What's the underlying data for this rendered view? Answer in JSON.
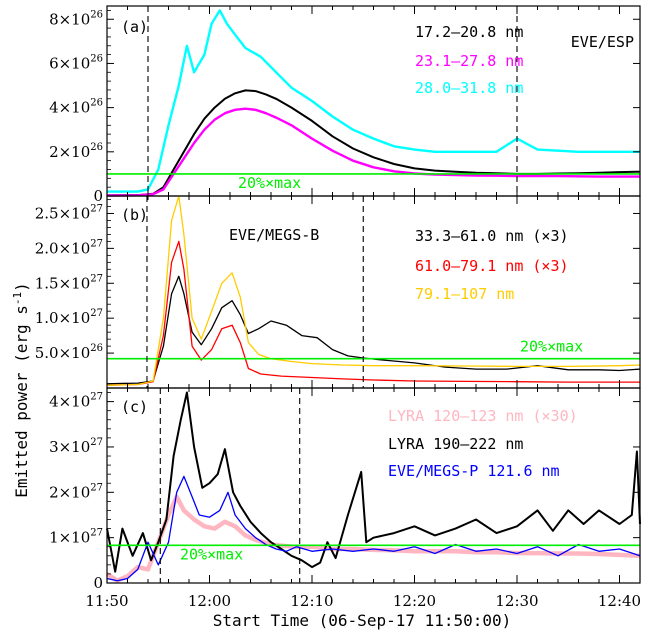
{
  "figure": {
    "xlabel": "Start Time (06-Sep-17 11:50:00)",
    "ylabel_main": "Emitted power (erg s",
    "ylabel_sup": "-1",
    "ylabel_close": ")",
    "x_tick_labels": [
      "11:50",
      "12:00",
      "12:10",
      "12:20",
      "12:30",
      "12:40"
    ],
    "threshold_label": "20%×max"
  },
  "colors": {
    "black": "#000000",
    "magenta": "#ff00ff",
    "cyan": "#00ffff",
    "red": "#ff0000",
    "gold": "#ffcc00",
    "pink": "#ffb6c1",
    "blue": "#0000ff",
    "green": "#00ee00"
  },
  "chart_data": [
    {
      "type": "line",
      "panel_label": "(a)",
      "instrument_label": "EVE/ESP",
      "x_unit": "minutes after 11:50",
      "xlim": [
        0,
        52
      ],
      "ylim": [
        0,
        8.6e+26
      ],
      "y_tick_labels": [
        {
          "mant": "0",
          "exp": ""
        },
        {
          "mant": "2×10",
          "exp": "26"
        },
        {
          "mant": "4×10",
          "exp": "26"
        },
        {
          "mant": "6×10",
          "exp": "26"
        },
        {
          "mant": "8×10",
          "exp": "26"
        }
      ],
      "y_ticks": [
        0,
        2e+26,
        4e+26,
        6e+26,
        8e+26
      ],
      "threshold": 1e+26,
      "vlines": [
        4.0,
        40.0
      ],
      "series": [
        {
          "name": "17.2–20.8 nm",
          "color": "black",
          "x": [
            0,
            3,
            4.5,
            5.5,
            6.5,
            7.5,
            8.5,
            9.5,
            10.5,
            11.5,
            12.5,
            13.5,
            14.5,
            15.5,
            16.5,
            18,
            20,
            22,
            24,
            26,
            28,
            30,
            32,
            34,
            36,
            38,
            40,
            42,
            44,
            46,
            48,
            50,
            52
          ],
          "y": [
            3e+24,
            4e+24,
            1e+25,
            4e+25,
            1.2e+26,
            2e+26,
            2.8e+26,
            3.5e+26,
            4e+26,
            4.4e+26,
            4.65e+26,
            4.78e+26,
            4.75e+26,
            4.6e+26,
            4.4e+26,
            4e+26,
            3.4e+26,
            2.7e+26,
            2.15e+26,
            1.75e+26,
            1.45e+26,
            1.25e+26,
            1.15e+26,
            1.1e+26,
            1.05e+26,
            1.03e+26,
            1e+26,
            1e+26,
            1.02e+26,
            1.03e+26,
            1.05e+26,
            1.08e+26,
            1.1e+26
          ]
        },
        {
          "name": "23.1–27.8 nm",
          "color": "magenta",
          "x": [
            0,
            3,
            4.5,
            5.5,
            6.5,
            7.5,
            8.5,
            9.5,
            10.5,
            11.5,
            12.5,
            13.5,
            14.5,
            15.5,
            16.5,
            18,
            20,
            22,
            24,
            26,
            28,
            30,
            32,
            34,
            36,
            38,
            40,
            42,
            44,
            46,
            48,
            50,
            52
          ],
          "y": [
            2e+24,
            3e+24,
            8e+24,
            3e+25,
            1e+26,
            1.7e+26,
            2.4e+26,
            3e+26,
            3.45e+26,
            3.75e+26,
            3.9e+26,
            3.95e+26,
            3.9e+26,
            3.75e+26,
            3.55e+26,
            3.2e+26,
            2.6e+26,
            2.05e+26,
            1.6e+26,
            1.3e+26,
            1.12e+26,
            1.02e+26,
            9.7e+25,
            9.5e+25,
            9.3e+25,
            9.2e+25,
            9e+25,
            9e+25,
            9e+25,
            8.9e+25,
            8.8e+25,
            8.8e+25,
            8.8e+25
          ]
        },
        {
          "name": "28.0–31.8 nm",
          "color": "cyan",
          "x": [
            0,
            3,
            4.0,
            5.0,
            6.0,
            7.0,
            7.8,
            8.5,
            9.5,
            10.2,
            11.0,
            11.7,
            12.5,
            13.5,
            15,
            16.5,
            18,
            20,
            22,
            24,
            26,
            28,
            30,
            32,
            34,
            36,
            38,
            40,
            42,
            44,
            46,
            48,
            50,
            52
          ],
          "y": [
            2e+25,
            2e+25,
            3e+25,
            1.2e+26,
            3.2e+26,
            5e+26,
            6.8e+26,
            5.6e+26,
            6.4e+26,
            7.8e+26,
            8.4e+26,
            7.8e+26,
            7.3e+26,
            6.7e+26,
            6.3e+26,
            5.6e+26,
            4.9e+26,
            4.3e+26,
            3.6e+26,
            3e+26,
            2.6e+26,
            2.25e+26,
            2.1e+26,
            2e+26,
            2e+26,
            2e+26,
            2e+26,
            2.6e+26,
            2.1e+26,
            2.05e+26,
            2e+26,
            2e+26,
            2e+26,
            2e+26
          ]
        }
      ]
    },
    {
      "type": "line",
      "panel_label": "(b)",
      "instrument_label": "EVE/MEGS-B",
      "x_unit": "minutes after 11:50",
      "xlim": [
        0,
        52
      ],
      "ylim": [
        0,
        2.75e+27
      ],
      "y_tick_labels": [
        {
          "mant": "5.0×10",
          "exp": "26"
        },
        {
          "mant": "1.0×10",
          "exp": "27"
        },
        {
          "mant": "1.5×10",
          "exp": "27"
        },
        {
          "mant": "2.0×10",
          "exp": "27"
        },
        {
          "mant": "2.5×10",
          "exp": "27"
        }
      ],
      "y_ticks": [
        5e+26,
        1e+27,
        1.5e+27,
        2e+27,
        2.5e+27
      ],
      "threshold": 4.2e+26,
      "vlines": [
        3.9,
        25.0
      ],
      "series": [
        {
          "name": "33.3–61.0 nm (×3)",
          "color": "black",
          "x": [
            0,
            3,
            4.5,
            5.5,
            6.3,
            7.0,
            7.5,
            8.3,
            9.2,
            10.2,
            11.2,
            12.2,
            13.0,
            13.8,
            14.8,
            16,
            17.5,
            19,
            20.5,
            22,
            23.5,
            25,
            27,
            30,
            33,
            36,
            39,
            42,
            45,
            48,
            50,
            52
          ],
          "y": [
            6e+25,
            7e+25,
            1e+26,
            6e+26,
            1.35e+27,
            1.6e+27,
            1.35e+27,
            8e+26,
            6.2e+26,
            8.5e+26,
            1.15e+27,
            1.25e+27,
            1.05e+27,
            7.8e+26,
            8.5e+26,
            9.6e+26,
            9e+26,
            7.5e+26,
            7.2e+26,
            5.5e+26,
            4.6e+26,
            4.3e+26,
            4e+26,
            3.6e+26,
            3e+26,
            2.7e+26,
            2.7e+26,
            3.2e+26,
            2.6e+26,
            2.6e+26,
            2.5e+26,
            2.7e+26
          ]
        },
        {
          "name": "61.0–79.1 nm (×3)",
          "color": "red",
          "x": [
            0,
            3,
            4.5,
            5.5,
            6.3,
            7.0,
            7.5,
            8.3,
            9.2,
            10.2,
            11.2,
            12.2,
            13.0,
            13.8,
            15,
            17,
            20,
            23,
            26,
            30,
            35,
            40,
            45,
            52
          ],
          "y": [
            4e+25,
            5e+25,
            9e+25,
            7.5e+26,
            1.8e+27,
            2.1e+27,
            1.7e+27,
            6e+26,
            4e+26,
            5.5e+26,
            8.5e+26,
            9e+26,
            6.5e+26,
            2.8e+26,
            2e+26,
            1.7e+26,
            1.5e+26,
            1.3e+26,
            1.15e+26,
            1e+26,
            9.5e+25,
            9e+25,
            8.5e+25,
            8.5e+25
          ]
        },
        {
          "name": "79.1–107 nm",
          "color": "gold",
          "x": [
            0,
            3,
            4.5,
            5.5,
            6.3,
            7.0,
            7.5,
            8.3,
            9.2,
            10.2,
            11.2,
            12.2,
            13.0,
            13.8,
            14.8,
            16,
            18,
            20,
            23,
            26,
            30,
            35,
            40,
            45,
            50,
            52
          ],
          "y": [
            4e+25,
            5e+25,
            1e+26,
            1e+27,
            2.4e+27,
            2.75e+27,
            2.2e+27,
            1e+27,
            7e+26,
            1.1e+27,
            1.5e+27,
            1.65e+27,
            1.3e+27,
            6.5e+26,
            4.8e+26,
            4.2e+26,
            3.8e+26,
            3.5e+26,
            3.3e+26,
            3.2e+26,
            3.2e+26,
            3.15e+26,
            3.1e+26,
            3.1e+26,
            3.2e+26,
            3.3e+26
          ]
        }
      ]
    },
    {
      "type": "line",
      "panel_label": "(c)",
      "x_unit": "minutes after 11:50",
      "xlim": [
        0,
        52
      ],
      "ylim": [
        0,
        4.3e+27
      ],
      "y_tick_labels": [
        {
          "mant": "0",
          "exp": ""
        },
        {
          "mant": "1×10",
          "exp": "27"
        },
        {
          "mant": "2×10",
          "exp": "27"
        },
        {
          "mant": "3×10",
          "exp": "27"
        },
        {
          "mant": "4×10",
          "exp": "27"
        }
      ],
      "y_ticks": [
        0,
        1e+27,
        2e+27,
        3e+27,
        4e+27
      ],
      "threshold": 8.3e+26,
      "vlines": [
        5.2,
        18.8
      ],
      "series": [
        {
          "name": "LYRA 120–123 nm (×30)",
          "color": "pink",
          "x": [
            0,
            1,
            2,
            3,
            4,
            5,
            6,
            6.8,
            7.5,
            8.5,
            9.5,
            10.5,
            11.5,
            12.5,
            13.5,
            14.5,
            16,
            18,
            20,
            22,
            24,
            26,
            28,
            30,
            32,
            34,
            36,
            38,
            40,
            42,
            44,
            46,
            48,
            50,
            52
          ],
          "y": [
            2e+26,
            5e+25,
            1.5e+26,
            3.5e+26,
            3e+26,
            9e+26,
            1.5e+27,
            1.9e+27,
            1.6e+27,
            1.4e+27,
            1.25e+27,
            1.2e+27,
            1.35e+27,
            1.25e+27,
            1.05e+27,
            9.5e+26,
            8.5e+26,
            8e+26,
            8e+26,
            7.5e+26,
            7.5e+26,
            7.3e+26,
            7.2e+26,
            7e+26,
            7e+26,
            7e+26,
            6.8e+26,
            6.8e+26,
            6.6e+26,
            6.6e+26,
            6.5e+26,
            6.5e+26,
            6.4e+26,
            6.2e+26,
            6e+26
          ]
        },
        {
          "name": "LYRA 190–222 nm",
          "color": "black",
          "x": [
            0,
            0.8,
            1.5,
            2.5,
            3.5,
            4.3,
            5.0,
            5.8,
            6.5,
            7.2,
            7.8,
            8.5,
            9.3,
            10.0,
            10.8,
            11.5,
            12.3,
            13.0,
            14.0,
            15.0,
            16.0,
            17.0,
            18.0,
            19.0,
            20.0,
            20.8,
            21.5,
            22.3,
            23.5,
            24.8,
            25.3,
            26.0,
            28,
            30,
            32,
            34,
            36,
            38,
            40,
            42,
            43.5,
            45,
            46.5,
            48,
            50,
            51.2,
            51.7,
            52
          ],
          "y": [
            1.2e+27,
            2.5e+26,
            1.2e+27,
            6e+26,
            1.1e+27,
            5e+26,
            9e+26,
            1.4e+27,
            2.8e+27,
            3.6e+27,
            4.2e+27,
            3e+27,
            2.1e+27,
            2.2e+27,
            2.4e+27,
            2.95e+27,
            2e+27,
            1.7e+27,
            1.35e+27,
            1.1e+27,
            9e+26,
            7.5e+26,
            6e+26,
            5e+26,
            3.5e+26,
            4.5e+26,
            9e+26,
            5.5e+26,
            1.5e+27,
            2.45e+27,
            9e+26,
            1e+27,
            1.1e+27,
            1.25e+27,
            1.05e+27,
            1.2e+27,
            1.4e+27,
            1.1e+27,
            1.25e+27,
            1.6e+27,
            1.15e+27,
            1.6e+27,
            1.3e+27,
            1.6e+27,
            1.3e+27,
            1.5e+27,
            2.9e+27,
            1.3e+27
          ]
        },
        {
          "name": "EVE/MEGS-P 121.6 nm",
          "color": "blue",
          "x": [
            0,
            1,
            2,
            3,
            4,
            5,
            6,
            6.8,
            7.5,
            8.3,
            9.0,
            10.0,
            11.0,
            11.8,
            12.5,
            13.5,
            14.5,
            15.5,
            16.5,
            17.5,
            18.5,
            20,
            22,
            24,
            26,
            28,
            30,
            32,
            34,
            36,
            38,
            40,
            42,
            44,
            46,
            48,
            50,
            52
          ],
          "y": [
            1e+26,
            5e+25,
            1e+26,
            3e+26,
            9e+26,
            4e+26,
            9e+26,
            2e+27,
            2.35e+27,
            1.9e+27,
            1.5e+27,
            1.45e+27,
            1.6e+27,
            2e+27,
            1.5e+27,
            1.2e+27,
            1e+27,
            8.5e+26,
            7.5e+26,
            7e+26,
            8e+26,
            7e+26,
            7.5e+26,
            7e+26,
            7.5e+26,
            7e+26,
            8e+26,
            6.5e+26,
            8.5e+26,
            7e+26,
            7.5e+26,
            6.5e+26,
            8e+26,
            6e+26,
            8.5e+26,
            7e+26,
            7.5e+26,
            6e+26
          ]
        }
      ]
    }
  ]
}
